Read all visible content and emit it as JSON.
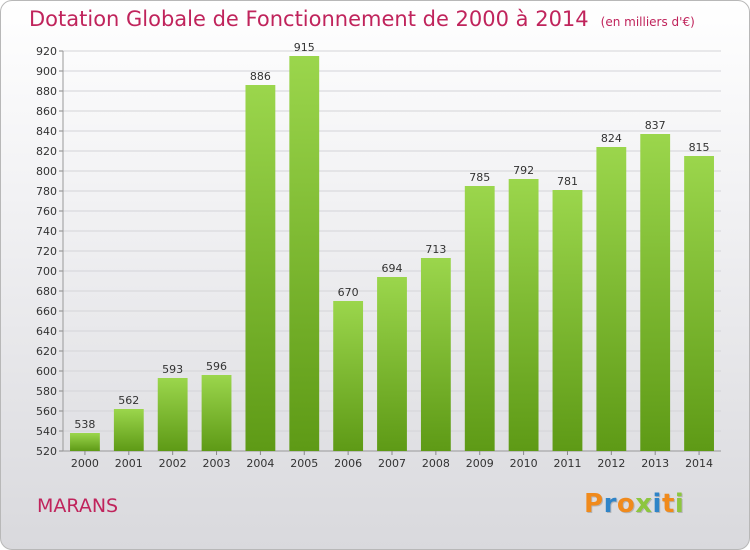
{
  "title": "Dotation Globale de Fonctionnement de 2000 à 2014",
  "unit_note": "(en milliers d'€)",
  "place": "MARANS",
  "logo": {
    "text": "Proxiti",
    "colors": [
      "#f08a1c",
      "#2f84c8",
      "#f08a1c",
      "#8dc63f",
      "#2f84c8",
      "#f08a1c",
      "#8dc63f"
    ]
  },
  "colors": {
    "accent": "#c0245c",
    "bar_light": "#9bd64c",
    "bar_dark": "#5e9a16"
  },
  "chart_data": {
    "type": "bar",
    "categories": [
      "2000",
      "2001",
      "2002",
      "2003",
      "2004",
      "2005",
      "2006",
      "2007",
      "2008",
      "2009",
      "2010",
      "2011",
      "2012",
      "2013",
      "2014"
    ],
    "values": [
      538,
      562,
      593,
      596,
      886,
      915,
      670,
      694,
      713,
      785,
      792,
      781,
      824,
      837,
      815
    ],
    "ylim": [
      520,
      920
    ],
    "yticks": [
      520,
      540,
      560,
      580,
      600,
      620,
      640,
      660,
      680,
      700,
      720,
      740,
      760,
      780,
      800,
      820,
      840,
      860,
      880,
      900,
      920
    ],
    "grid": true,
    "title": "Dotation Globale de Fonctionnement de 2000 à 2014",
    "xlabel": "",
    "ylabel": ""
  }
}
